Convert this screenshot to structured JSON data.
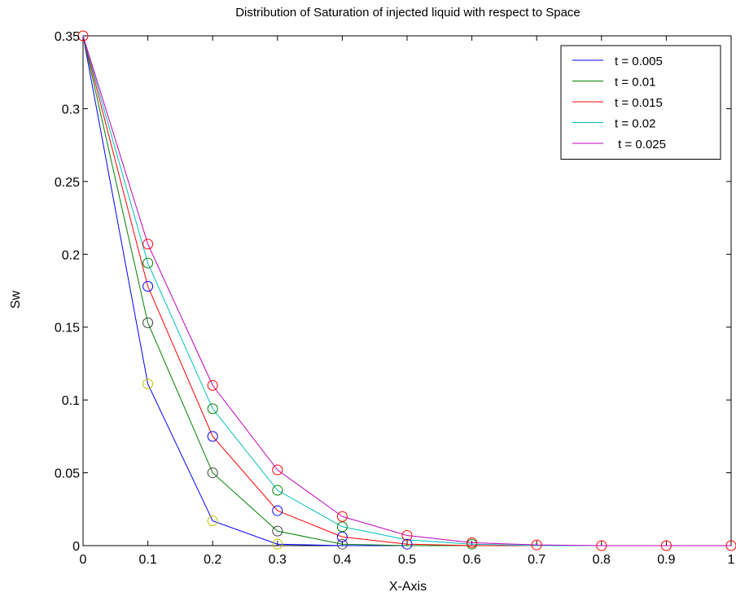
{
  "chart_data": {
    "type": "line",
    "title": "Distribution of Saturation of injected liquid  with respect to Space",
    "xlabel": "X-Axis",
    "ylabel": "Sw",
    "xlim": [
      0,
      1
    ],
    "ylim": [
      0,
      0.35
    ],
    "xticks": [
      0,
      0.1,
      0.2,
      0.3,
      0.4,
      0.5,
      0.6,
      0.7,
      0.8,
      0.9,
      1
    ],
    "xtick_labels": [
      "0",
      "0.1",
      "0.2",
      "0.3",
      "0.4",
      "0.5",
      "0.6",
      "0.7",
      "0.8",
      "0.9",
      "1"
    ],
    "yticks": [
      0,
      0.05,
      0.1,
      0.15,
      0.2,
      0.25,
      0.3,
      0.35
    ],
    "ytick_labels": [
      "0",
      "0.05",
      "0.1",
      "0.15",
      "0.2",
      "0.25",
      "0.3",
      "0.35"
    ],
    "grid": false,
    "legend_position": "top-right",
    "x": [
      0,
      0.1,
      0.2,
      0.3,
      0.4,
      0.5,
      0.6,
      0.7,
      0.8,
      0.9,
      1
    ],
    "series": [
      {
        "name": "t = 0.005",
        "color": "#0000ff",
        "values": [
          0.35,
          0.111,
          0.017,
          0.001,
          0.0,
          0.0,
          0.0,
          0.0,
          0.0,
          0.0,
          0.0
        ]
      },
      {
        "name": "t = 0.01",
        "color": "#008000",
        "values": [
          0.35,
          0.153,
          0.05,
          0.01,
          0.001,
          0.0,
          0.0,
          0.0,
          0.0,
          0.0,
          0.0
        ]
      },
      {
        "name": "t = 0.015",
        "color": "#ff0000",
        "values": [
          0.35,
          0.178,
          0.075,
          0.024,
          0.006,
          0.001,
          0.0,
          0.0,
          0.0,
          0.0,
          0.0
        ]
      },
      {
        "name": "t = 0.02",
        "color": "#00bfbf",
        "values": [
          0.35,
          0.194,
          0.094,
          0.038,
          0.013,
          0.004,
          0.001,
          0.0,
          0.0,
          0.0,
          0.0
        ]
      },
      {
        "name": " t = 0.025",
        "color": "#bf00bf",
        "values": [
          0.35,
          0.207,
          0.11,
          0.052,
          0.02,
          0.007,
          0.002,
          0.0005,
          0.0,
          0.0,
          0.0
        ]
      }
    ],
    "markers": [
      {
        "x": 0.1,
        "y": 0.111,
        "color": "#bfbf00"
      },
      {
        "x": 0.2,
        "y": 0.017,
        "color": "#bfbf00"
      },
      {
        "x": 0.3,
        "y": 0.001,
        "color": "#bfbf00"
      },
      {
        "x": 0.1,
        "y": 0.153,
        "color": "#404040"
      },
      {
        "x": 0.2,
        "y": 0.05,
        "color": "#404040"
      },
      {
        "x": 0.3,
        "y": 0.01,
        "color": "#404040"
      },
      {
        "x": 0.4,
        "y": 0.001,
        "color": "#404040"
      },
      {
        "x": 0.1,
        "y": 0.178,
        "color": "#0000ff"
      },
      {
        "x": 0.2,
        "y": 0.075,
        "color": "#0000ff"
      },
      {
        "x": 0.3,
        "y": 0.024,
        "color": "#0000ff"
      },
      {
        "x": 0.4,
        "y": 0.006,
        "color": "#0000ff"
      },
      {
        "x": 0.5,
        "y": 0.001,
        "color": "#0000ff"
      },
      {
        "x": 0.1,
        "y": 0.194,
        "color": "#008000"
      },
      {
        "x": 0.2,
        "y": 0.094,
        "color": "#008000"
      },
      {
        "x": 0.3,
        "y": 0.038,
        "color": "#008000"
      },
      {
        "x": 0.4,
        "y": 0.013,
        "color": "#008000"
      },
      {
        "x": 0.6,
        "y": 0.001,
        "color": "#008000"
      },
      {
        "x": 0,
        "y": 0.35,
        "color": "#ff0000"
      },
      {
        "x": 0.1,
        "y": 0.207,
        "color": "#ff0000"
      },
      {
        "x": 0.2,
        "y": 0.11,
        "color": "#ff0000"
      },
      {
        "x": 0.3,
        "y": 0.052,
        "color": "#ff0000"
      },
      {
        "x": 0.4,
        "y": 0.02,
        "color": "#ff0000"
      },
      {
        "x": 0.5,
        "y": 0.007,
        "color": "#ff0000"
      },
      {
        "x": 0.6,
        "y": 0.002,
        "color": "#ff0000"
      },
      {
        "x": 0.7,
        "y": 0.0005,
        "color": "#ff0000"
      },
      {
        "x": 0.8,
        "y": 0.0,
        "color": "#ff0000"
      },
      {
        "x": 0.9,
        "y": 0.0,
        "color": "#ff0000"
      },
      {
        "x": 1,
        "y": 0.0,
        "color": "#ff0000"
      }
    ]
  }
}
